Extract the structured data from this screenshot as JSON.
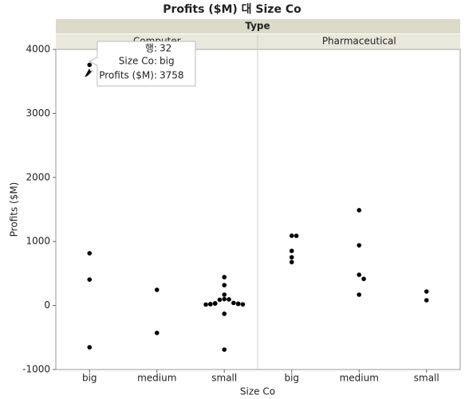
{
  "chart_data": {
    "type": "scatter",
    "title": "Profits ($M) 대 Size Co",
    "group_title": "Type",
    "x_label": "Size Co",
    "y_label": "Profits ($M)",
    "categories": [
      "big",
      "medium",
      "small"
    ],
    "ylim": [
      -1000,
      4000
    ],
    "yticks": [
      -1000,
      0,
      1000,
      2000,
      3000,
      4000
    ],
    "color": "#000000",
    "panels": [
      {
        "name": "Computer",
        "x": [
          "big",
          "big",
          "big",
          "big",
          "medium",
          "medium",
          "small",
          "small",
          "small",
          "small",
          "small",
          "small",
          "small",
          "small",
          "small",
          "small",
          "small",
          "small",
          "small",
          "small",
          "small",
          "small",
          "small"
        ],
        "values": [
          3758,
          816,
          405,
          -652,
          245,
          -428,
          443,
          318,
          169,
          100,
          95,
          90,
          40,
          35,
          30,
          28,
          25,
          22,
          20,
          18,
          15,
          -129,
          -689
        ]
      },
      {
        "name": "Pharmaceutical",
        "x": [
          "big",
          "big",
          "big",
          "big",
          "big",
          "medium",
          "medium",
          "medium",
          "medium",
          "medium",
          "small",
          "small"
        ],
        "values": [
          1090,
          1088,
          853,
          753,
          678,
          1488,
          940,
          480,
          416,
          169,
          219,
          82
        ]
      }
    ],
    "tooltip": {
      "row_label": "행:",
      "row": 32,
      "x_label": "Size Co:",
      "x_value": "big",
      "y_label": "Profits ($M):",
      "y_value": 3758
    }
  }
}
